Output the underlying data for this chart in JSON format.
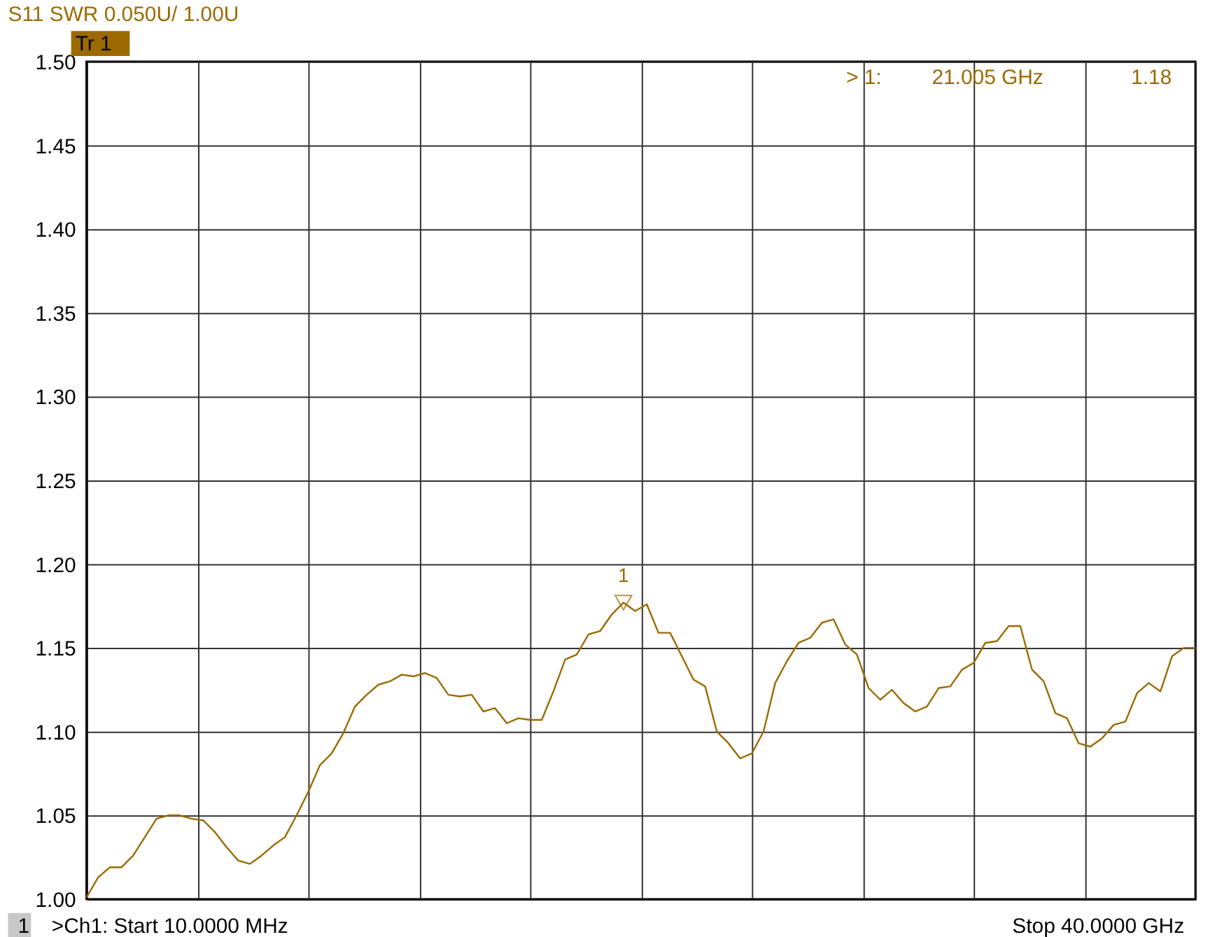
{
  "chart_data": {
    "type": "line",
    "title": "S11 SWR 0.050U/  1.00U",
    "categories": [
      null,
      null,
      null,
      null,
      null,
      null,
      null,
      null,
      null,
      null,
      null,
      null,
      null,
      null,
      null,
      null,
      null,
      null,
      null,
      null,
      null,
      null,
      null,
      null,
      null,
      null,
      null,
      null,
      null,
      null,
      null,
      null,
      null,
      null,
      null,
      null,
      null,
      null,
      null,
      null,
      null,
      null,
      null,
      null,
      null,
      null,
      null,
      null,
      null,
      null,
      null,
      null,
      null,
      null,
      null,
      null,
      null,
      null,
      null,
      null,
      null,
      null,
      null,
      null,
      null,
      null,
      null,
      null,
      null,
      null,
      null,
      null,
      null,
      null,
      null,
      null,
      null,
      null,
      null,
      null,
      null,
      null,
      null,
      null,
      null,
      null,
      null,
      null,
      null,
      null,
      null,
      null,
      null,
      null,
      null,
      null
    ],
    "ylim": [
      1.0,
      1.5
    ],
    "yticks": [
      {
        "value": 1.0,
        "label": "1.00"
      },
      {
        "value": 1.05,
        "label": "1.05"
      },
      {
        "value": 1.1,
        "label": "1.10"
      },
      {
        "value": 1.15,
        "label": "1.15"
      },
      {
        "value": 1.2,
        "label": "1.20"
      },
      {
        "value": 1.25,
        "label": "1.25"
      },
      {
        "value": 1.3,
        "label": "1.30"
      },
      {
        "value": 1.35,
        "label": "1.35"
      },
      {
        "value": 1.4,
        "label": "1.40"
      },
      {
        "value": 1.45,
        "label": "1.45"
      },
      {
        "value": 1.5,
        "label": "1.50"
      }
    ],
    "tick_labels": "y",
    "grid": true,
    "marker": "none",
    "line_style": "solid",
    "series": [
      {
        "color": "#9c6a00",
        "values": [
          1.001,
          1.013,
          1.019,
          1.019,
          1.026,
          1.037,
          1.048,
          1.05,
          1.05,
          1.048,
          1.047,
          1.04,
          1.031,
          1.023,
          1.021,
          1.026,
          1.032,
          1.037,
          1.05,
          1.064,
          1.08,
          1.087,
          1.099,
          1.115,
          1.122,
          1.128,
          1.13,
          1.134,
          1.133,
          1.135,
          1.132,
          1.122,
          1.121,
          1.122,
          1.112,
          1.114,
          1.105,
          1.108,
          1.107,
          1.107,
          1.124,
          1.143,
          1.146,
          1.158,
          1.16,
          1.17,
          1.177,
          1.172,
          1.176,
          1.159,
          1.159,
          1.145,
          1.131,
          1.127,
          1.1,
          1.093,
          1.084,
          1.087,
          1.1,
          1.129,
          1.142,
          1.153,
          1.156,
          1.165,
          1.167,
          1.152,
          1.146,
          1.126,
          1.119,
          1.125,
          1.117,
          1.112,
          1.115,
          1.126,
          1.127,
          1.137,
          1.141,
          1.153,
          1.154,
          1.163,
          1.163,
          1.137,
          1.13,
          1.111,
          1.108,
          1.093,
          1.091,
          1.096,
          1.104,
          1.106,
          1.123,
          1.129,
          1.124,
          1.145,
          1.15,
          1.15
        ]
      }
    ],
    "annotations": [
      "Tr 1",
      "> 1:",
      "21.005 GHz",
      "1.18",
      "1",
      "1",
      ">Ch1:   Start  10.0000 MHz",
      "Stop  40.0000 GHz"
    ]
  }
}
